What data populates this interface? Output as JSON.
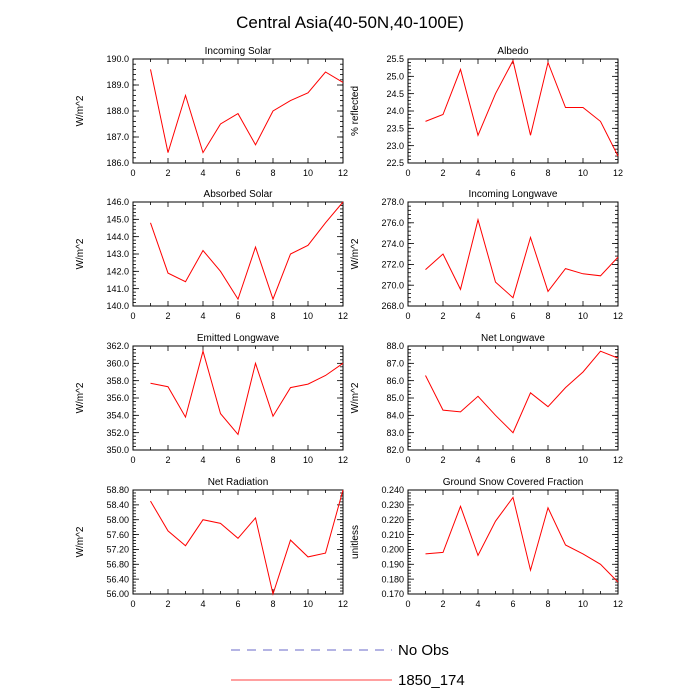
{
  "chart_data": {
    "type": "line",
    "title": "Central Asia(40-50N,40-100E)",
    "panels": [
      {
        "title": "Incoming Solar",
        "ylabel": "W/m^2",
        "xlim": [
          0,
          12
        ],
        "xticks": [
          "0",
          "2",
          "4",
          "6",
          "8",
          "10",
          "12"
        ],
        "ylim": [
          186.0,
          190.0
        ],
        "yticks": [
          "186.0",
          "187.0",
          "188.0",
          "189.0",
          "190.0"
        ],
        "x": [
          1,
          2,
          3,
          4,
          5,
          6,
          7,
          8,
          9,
          10,
          11,
          12
        ],
        "values": [
          189.6,
          186.4,
          188.6,
          186.4,
          187.5,
          187.9,
          186.7,
          188.0,
          188.4,
          188.7,
          189.5,
          189.1
        ]
      },
      {
        "title": "Albedo",
        "ylabel": "% reflected",
        "xlim": [
          0,
          12
        ],
        "xticks": [
          "0",
          "2",
          "4",
          "6",
          "8",
          "10",
          "12"
        ],
        "ylim": [
          22.5,
          25.5
        ],
        "yticks": [
          "22.5",
          "23.0",
          "23.5",
          "24.0",
          "24.5",
          "25.0",
          "25.5"
        ],
        "x": [
          1,
          2,
          3,
          4,
          5,
          6,
          7,
          8,
          9,
          10,
          11,
          12
        ],
        "values": [
          23.7,
          23.9,
          25.2,
          23.3,
          24.5,
          25.45,
          23.3,
          25.4,
          24.1,
          24.1,
          23.7,
          22.7
        ]
      },
      {
        "title": "Absorbed Solar",
        "ylabel": "W/m^2",
        "xlim": [
          0,
          12
        ],
        "xticks": [
          "0",
          "2",
          "4",
          "6",
          "8",
          "10",
          "12"
        ],
        "ylim": [
          140.0,
          146.0
        ],
        "yticks": [
          "140.0",
          "141.0",
          "142.0",
          "143.0",
          "144.0",
          "145.0",
          "146.0"
        ],
        "x": [
          1,
          2,
          3,
          4,
          5,
          6,
          7,
          8,
          9,
          10,
          11,
          12
        ],
        "values": [
          144.8,
          141.9,
          141.4,
          143.2,
          142.0,
          140.4,
          143.4,
          140.4,
          143.0,
          143.5,
          144.8,
          146.0
        ]
      },
      {
        "title": "Incoming Longwave",
        "ylabel": "W/m^2",
        "xlim": [
          0,
          12
        ],
        "xticks": [
          "0",
          "2",
          "4",
          "6",
          "8",
          "10",
          "12"
        ],
        "ylim": [
          268.0,
          278.0
        ],
        "yticks": [
          "268.0",
          "270.0",
          "272.0",
          "274.0",
          "276.0",
          "278.0"
        ],
        "x": [
          1,
          2,
          3,
          4,
          5,
          6,
          7,
          8,
          9,
          10,
          11,
          12
        ],
        "values": [
          271.5,
          273.0,
          269.6,
          276.3,
          270.3,
          268.8,
          274.6,
          269.4,
          271.6,
          271.1,
          270.9,
          272.7
        ]
      },
      {
        "title": "Emitted Longwave",
        "ylabel": "W/m^2",
        "xlim": [
          0,
          12
        ],
        "xticks": [
          "0",
          "2",
          "4",
          "6",
          "8",
          "10",
          "12"
        ],
        "ylim": [
          350.0,
          362.0
        ],
        "yticks": [
          "350.0",
          "352.0",
          "354.0",
          "356.0",
          "358.0",
          "360.0",
          "362.0"
        ],
        "x": [
          1,
          2,
          3,
          4,
          5,
          6,
          7,
          8,
          9,
          10,
          11,
          12
        ],
        "values": [
          357.7,
          357.3,
          353.8,
          361.4,
          354.2,
          351.8,
          360.0,
          353.9,
          357.2,
          357.6,
          358.6,
          360.0
        ]
      },
      {
        "title": "Net Longwave",
        "ylabel": "W/m^2",
        "xlim": [
          0,
          12
        ],
        "xticks": [
          "0",
          "2",
          "4",
          "6",
          "8",
          "10",
          "12"
        ],
        "ylim": [
          82.0,
          88.0
        ],
        "yticks": [
          "82.0",
          "83.0",
          "84.0",
          "85.0",
          "86.0",
          "87.0",
          "88.0"
        ],
        "x": [
          1,
          2,
          3,
          4,
          5,
          6,
          7,
          8,
          9,
          10,
          11,
          12
        ],
        "values": [
          86.3,
          84.3,
          84.2,
          85.1,
          84.0,
          83.0,
          85.3,
          84.5,
          85.6,
          86.5,
          87.7,
          87.3
        ]
      },
      {
        "title": "Net Radiation",
        "ylabel": "W/m^2",
        "xlim": [
          0,
          12
        ],
        "xticks": [
          "0",
          "2",
          "4",
          "6",
          "8",
          "10",
          "12"
        ],
        "ylim": [
          56.0,
          58.8
        ],
        "yticks": [
          "56.00",
          "56.40",
          "56.80",
          "57.20",
          "57.60",
          "58.00",
          "58.40",
          "58.80"
        ],
        "x": [
          1,
          2,
          3,
          4,
          5,
          6,
          7,
          8,
          9,
          10,
          11,
          12
        ],
        "values": [
          58.5,
          57.7,
          57.3,
          58.0,
          57.9,
          57.5,
          58.05,
          56.0,
          57.45,
          57.0,
          57.1,
          58.8
        ]
      },
      {
        "title": "Ground Snow Covered Fraction",
        "ylabel": "unitless",
        "xlim": [
          0,
          12
        ],
        "xticks": [
          "0",
          "2",
          "4",
          "6",
          "8",
          "10",
          "12"
        ],
        "ylim": [
          0.17,
          0.24
        ],
        "yticks": [
          "0.170",
          "0.180",
          "0.190",
          "0.200",
          "0.210",
          "0.220",
          "0.230",
          "0.240"
        ],
        "x": [
          1,
          2,
          3,
          4,
          5,
          6,
          7,
          8,
          9,
          10,
          11,
          12
        ],
        "values": [
          0.197,
          0.198,
          0.229,
          0.196,
          0.219,
          0.235,
          0.186,
          0.228,
          0.203,
          0.197,
          0.19,
          0.178
        ]
      }
    ],
    "legend": {
      "position": "bottom-center",
      "entries": [
        {
          "label": "No Obs",
          "style": "dashed",
          "color": "#3a3ab8"
        },
        {
          "label": "1850_174",
          "style": "solid",
          "color": "#ff0000"
        }
      ]
    },
    "series_color": "#ff0000"
  }
}
